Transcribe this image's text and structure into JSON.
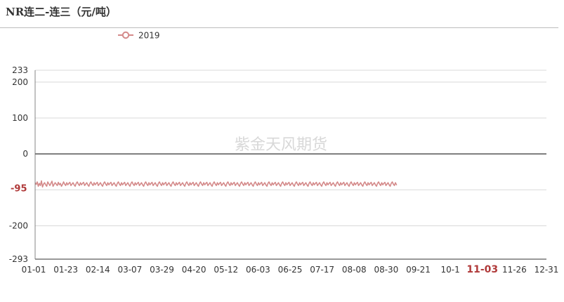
{
  "title": "NR连二-连三（元/吨）",
  "watermark": "紫金天风期货",
  "chart_data": {
    "type": "line",
    "title": "NR连二-连三（元/吨）",
    "xlabel": "",
    "ylabel": "",
    "ylim": [
      -293,
      233
    ],
    "y_ticks": [
      233,
      200,
      100,
      0,
      -100,
      -200,
      -293
    ],
    "y_tick_labels": [
      "233",
      "200",
      "100",
      "0",
      "",
      "-200",
      "-293"
    ],
    "x_tick_labels": [
      "01-01",
      "01-23",
      "02-14",
      "03-07",
      "03-29",
      "04-20",
      "05-12",
      "06-03",
      "06-25",
      "07-17",
      "08-08",
      "08-30",
      "09-21",
      "10-1",
      "11-03",
      "11-26",
      "12-31"
    ],
    "highlight_x_label": "11-03",
    "highlight_y_label": "-95",
    "highlight_y_value": -95,
    "series": [
      {
        "name": "2019",
        "color": "#d48a8a",
        "width": 1.6,
        "stride": 1.5,
        "values": [
          -80,
          -85,
          -78,
          -90,
          -82,
          -88,
          -75,
          -92,
          -84,
          -80,
          -86,
          -90,
          -78,
          -83,
          -88,
          -82,
          -76,
          -90,
          -85,
          -80,
          -84,
          -88,
          -79,
          -86,
          -82,
          -90,
          -85,
          -78,
          -84,
          -88,
          -80,
          -86,
          -82,
          -79,
          -88,
          -84,
          -80,
          -86,
          -90,
          -82,
          -78,
          -84,
          -88,
          -80,
          -86,
          -82,
          -79,
          -88,
          -84,
          -80,
          -86,
          -90,
          -82,
          -78,
          -84,
          -88,
          -80,
          -86,
          -82,
          -79,
          -88,
          -84,
          -80,
          -86,
          -90,
          -82,
          -78,
          -84,
          -88,
          -80,
          -86,
          -82,
          -79,
          -88,
          -84,
          -80,
          -86,
          -90,
          -82,
          -78,
          -84,
          -88,
          -80,
          -86,
          -82,
          -79,
          -88,
          -84,
          -80,
          -86,
          -90,
          -82,
          -78,
          -84,
          -88,
          -80,
          -86,
          -82,
          -79,
          -88,
          -84,
          -80,
          -86,
          -90,
          -82,
          -78,
          -84,
          -88,
          -80,
          -86,
          -82,
          -79,
          -88,
          -84,
          -80,
          -86,
          -90,
          -82,
          -78,
          -84,
          -88,
          -80,
          -86,
          -82,
          -79,
          -88,
          -84,
          -80,
          -86,
          -90,
          -82,
          -78,
          -84,
          -88,
          -80,
          -86,
          -82,
          -79,
          -88,
          -84,
          -80,
          -86,
          -90,
          -82,
          -78,
          -84,
          -88,
          -80,
          -86,
          -82,
          -79,
          -88,
          -84,
          -80,
          -86,
          -90,
          -82,
          -78,
          -84,
          -88,
          -80,
          -86,
          -82,
          -79,
          -88,
          -84,
          -80,
          -86,
          -90,
          -82,
          -78,
          -84,
          -88,
          -80,
          -86,
          -82,
          -79,
          -88,
          -84,
          -80,
          -86,
          -90,
          -82,
          -78,
          -84,
          -88,
          -80,
          -86,
          -82,
          -79,
          -88,
          -84,
          -80,
          -86,
          -90,
          -82,
          -78,
          -84,
          -88,
          -80,
          -86,
          -82,
          -79,
          -88,
          -84,
          -80,
          -86,
          -90,
          -82,
          -78,
          -84,
          -88,
          -80,
          -86,
          -82,
          -79,
          -88,
          -84,
          -80,
          -86,
          -90,
          -82,
          -78,
          -84,
          -88,
          -80,
          -86,
          -82,
          -79,
          -88,
          -84,
          -80,
          -86,
          -90,
          -82,
          -78,
          -84,
          -88,
          -80,
          -86,
          -82,
          -79,
          -88,
          -84,
          -80,
          -86,
          -90,
          -82,
          -78,
          -84,
          -88,
          -80,
          -86,
          -82,
          -79,
          -88,
          -84,
          -80,
          -86,
          -90,
          -82,
          -78,
          -84,
          -88,
          -80,
          -86,
          -82,
          -79,
          -88,
          -84,
          -80,
          -86,
          -90,
          -82,
          -78,
          -84,
          -88,
          -80,
          -86,
          -82,
          -79,
          -88,
          -84,
          -80,
          -86,
          -90,
          -82,
          -78,
          -84,
          -88,
          -80,
          -86,
          -82,
          -79,
          -88,
          -84,
          -80,
          -86,
          -90,
          -82,
          -78,
          -84,
          -88,
          -80,
          -86,
          -82,
          -79,
          -88,
          -84,
          -80,
          -86,
          -90,
          -82,
          -78,
          -84,
          -88,
          -80,
          -86,
          -82,
          -79,
          -88,
          -84,
          -80,
          -86,
          -90,
          -82,
          -78,
          -84,
          -88,
          -80,
          -86,
          -82,
          -79,
          -88,
          -84,
          -80,
          -86,
          -90,
          -82,
          -78,
          -84,
          -88,
          -80,
          -86
        ]
      }
    ]
  }
}
